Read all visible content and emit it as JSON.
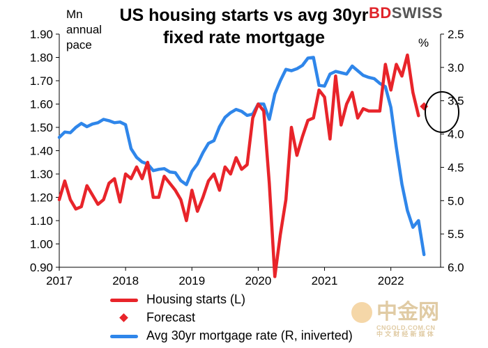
{
  "title": "US housing starts vs avg 30yr fixed rate mortgage",
  "left_unit": [
    "Mn",
    "annual",
    "pace"
  ],
  "right_unit": "%",
  "logo": {
    "bd": "BD",
    "swiss": "SWISS"
  },
  "watermark": {
    "main": "中金网",
    "url": "CNGOLD.COM.CN",
    "tagline": "中 文 财 经 新 媒 体"
  },
  "colors": {
    "housing": "#e8242a",
    "mortgage": "#2f86ea",
    "circle": "#000000"
  },
  "chart_data": {
    "type": "line",
    "title": "US housing starts vs avg 30yr fixed rate mortgage",
    "x_ticks": [
      2017,
      2018,
      2019,
      2020,
      2021,
      2022
    ],
    "xlim": [
      2017,
      2022.75
    ],
    "y_left": {
      "label": "Mn annual pace",
      "ylim": [
        0.9,
        1.9
      ],
      "ticks": [
        "0.90",
        "1.00",
        "1.10",
        "1.20",
        "1.30",
        "1.40",
        "1.50",
        "1.60",
        "1.70",
        "1.80",
        "1.90"
      ]
    },
    "y_right": {
      "label": "%",
      "inverted": true,
      "ylim": [
        2.5,
        6.0
      ],
      "ticks": [
        "2.5",
        "3.0",
        "3.5",
        "4.0",
        "4.5",
        "5.0",
        "5.5",
        "6.0"
      ]
    },
    "grid": false,
    "legend_placement": "bottom",
    "series": [
      {
        "name": "Housing starts (L)",
        "axis": "left",
        "points": [
          [
            2017.0,
            1.19
          ],
          [
            2017.083,
            1.27
          ],
          [
            2017.167,
            1.19
          ],
          [
            2017.25,
            1.15
          ],
          [
            2017.333,
            1.16
          ],
          [
            2017.417,
            1.25
          ],
          [
            2017.5,
            1.21
          ],
          [
            2017.583,
            1.17
          ],
          [
            2017.667,
            1.19
          ],
          [
            2017.75,
            1.26
          ],
          [
            2017.833,
            1.28
          ],
          [
            2017.917,
            1.18
          ],
          [
            2018.0,
            1.3
          ],
          [
            2018.083,
            1.28
          ],
          [
            2018.167,
            1.33
          ],
          [
            2018.25,
            1.28
          ],
          [
            2018.333,
            1.35
          ],
          [
            2018.417,
            1.2
          ],
          [
            2018.5,
            1.2
          ],
          [
            2018.583,
            1.29
          ],
          [
            2018.667,
            1.26
          ],
          [
            2018.75,
            1.23
          ],
          [
            2018.833,
            1.19
          ],
          [
            2018.917,
            1.1
          ],
          [
            2019.0,
            1.23
          ],
          [
            2019.083,
            1.14
          ],
          [
            2019.167,
            1.2
          ],
          [
            2019.25,
            1.27
          ],
          [
            2019.333,
            1.3
          ],
          [
            2019.417,
            1.23
          ],
          [
            2019.5,
            1.33
          ],
          [
            2019.583,
            1.3
          ],
          [
            2019.667,
            1.37
          ],
          [
            2019.75,
            1.32
          ],
          [
            2019.833,
            1.34
          ],
          [
            2019.917,
            1.54
          ],
          [
            2020.0,
            1.6
          ],
          [
            2020.083,
            1.57
          ],
          [
            2020.167,
            1.26
          ],
          [
            2020.25,
            0.86
          ],
          [
            2020.333,
            1.04
          ],
          [
            2020.417,
            1.19
          ],
          [
            2020.5,
            1.5
          ],
          [
            2020.583,
            1.38
          ],
          [
            2020.667,
            1.46
          ],
          [
            2020.75,
            1.53
          ],
          [
            2020.833,
            1.54
          ],
          [
            2020.917,
            1.66
          ],
          [
            2021.0,
            1.63
          ],
          [
            2021.083,
            1.45
          ],
          [
            2021.167,
            1.72
          ],
          [
            2021.25,
            1.51
          ],
          [
            2021.333,
            1.6
          ],
          [
            2021.417,
            1.65
          ],
          [
            2021.5,
            1.54
          ],
          [
            2021.583,
            1.58
          ],
          [
            2021.667,
            1.57
          ],
          [
            2021.75,
            1.57
          ],
          [
            2021.833,
            1.57
          ],
          [
            2021.917,
            1.77
          ],
          [
            2022.0,
            1.66
          ],
          [
            2022.083,
            1.77
          ],
          [
            2022.167,
            1.72
          ],
          [
            2022.25,
            1.81
          ],
          [
            2022.333,
            1.65
          ],
          [
            2022.417,
            1.55
          ]
        ]
      },
      {
        "name": "Forecast",
        "axis": "left",
        "marker": "diamond",
        "points": [
          [
            2022.5,
            1.59
          ]
        ]
      },
      {
        "name": "Avg 30yr mortgage rate (R, iniverted)",
        "axis": "right",
        "points": [
          [
            2017.0,
            4.05
          ],
          [
            2017.083,
            3.97
          ],
          [
            2017.167,
            3.98
          ],
          [
            2017.25,
            3.9
          ],
          [
            2017.333,
            3.84
          ],
          [
            2017.417,
            3.89
          ],
          [
            2017.5,
            3.85
          ],
          [
            2017.583,
            3.83
          ],
          [
            2017.667,
            3.78
          ],
          [
            2017.75,
            3.8
          ],
          [
            2017.833,
            3.83
          ],
          [
            2017.917,
            3.82
          ],
          [
            2018.0,
            3.86
          ],
          [
            2018.083,
            4.22
          ],
          [
            2018.167,
            4.35
          ],
          [
            2018.25,
            4.42
          ],
          [
            2018.333,
            4.45
          ],
          [
            2018.417,
            4.55
          ],
          [
            2018.5,
            4.53
          ],
          [
            2018.583,
            4.52
          ],
          [
            2018.667,
            4.57
          ],
          [
            2018.75,
            4.58
          ],
          [
            2018.833,
            4.7
          ],
          [
            2018.917,
            4.76
          ],
          [
            2019.0,
            4.56
          ],
          [
            2019.083,
            4.45
          ],
          [
            2019.167,
            4.28
          ],
          [
            2019.25,
            4.14
          ],
          [
            2019.333,
            4.1
          ],
          [
            2019.417,
            3.89
          ],
          [
            2019.5,
            3.75
          ],
          [
            2019.583,
            3.68
          ],
          [
            2019.667,
            3.63
          ],
          [
            2019.75,
            3.66
          ],
          [
            2019.833,
            3.72
          ],
          [
            2019.917,
            3.7
          ],
          [
            2020.0,
            3.55
          ],
          [
            2020.083,
            3.55
          ],
          [
            2020.167,
            3.78
          ],
          [
            2020.25,
            3.4
          ],
          [
            2020.333,
            3.2
          ],
          [
            2020.417,
            3.03
          ],
          [
            2020.5,
            3.05
          ],
          [
            2020.583,
            3.02
          ],
          [
            2020.667,
            2.97
          ],
          [
            2020.75,
            2.86
          ],
          [
            2020.833,
            2.85
          ],
          [
            2020.917,
            3.27
          ],
          [
            2021.0,
            3.28
          ],
          [
            2021.083,
            3.1
          ],
          [
            2021.167,
            3.06
          ],
          [
            2021.25,
            3.08
          ],
          [
            2021.333,
            3.1
          ],
          [
            2021.417,
            2.98
          ],
          [
            2021.5,
            3.05
          ],
          [
            2021.583,
            3.12
          ],
          [
            2021.667,
            3.15
          ],
          [
            2021.75,
            3.17
          ],
          [
            2021.833,
            3.24
          ],
          [
            2021.917,
            3.29
          ],
          [
            2022.0,
            3.6
          ],
          [
            2022.083,
            4.2
          ],
          [
            2022.167,
            4.75
          ],
          [
            2022.25,
            5.15
          ],
          [
            2022.333,
            5.4
          ],
          [
            2022.417,
            5.3
          ],
          [
            2022.5,
            5.81
          ]
        ]
      }
    ]
  }
}
